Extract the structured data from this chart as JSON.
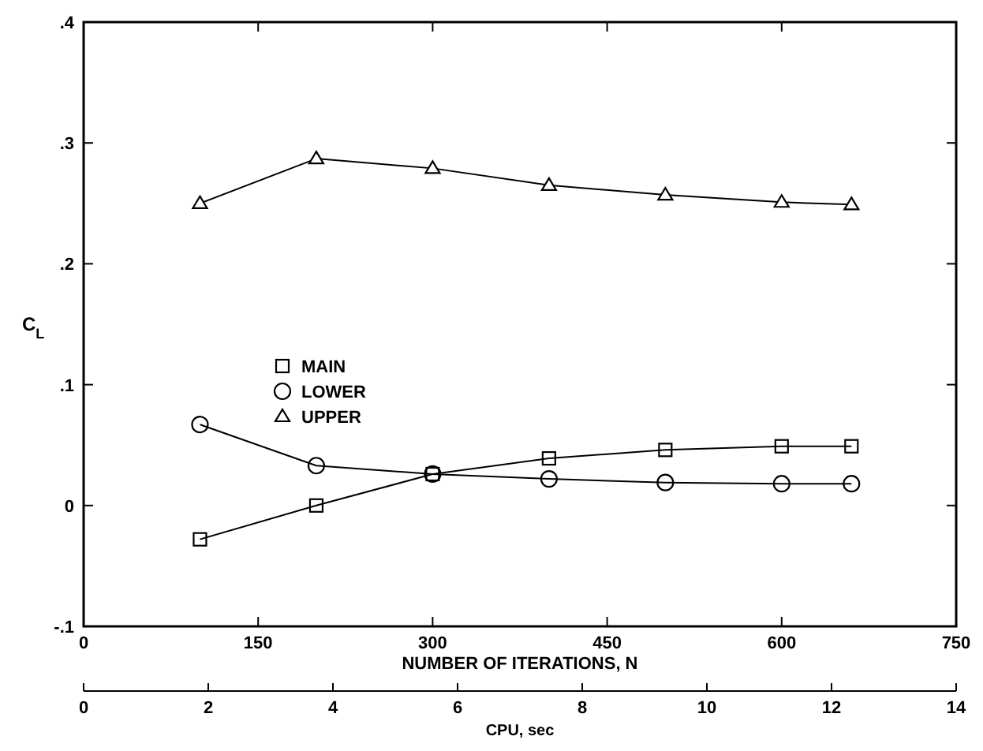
{
  "chart_data": {
    "type": "line",
    "xlabel": "NUMBER OF ITERATIONS, N",
    "ylabel": "C$_{L}$",
    "x2label": "CPU, sec",
    "x": [
      100,
      200,
      300,
      400,
      500,
      600,
      660
    ],
    "series": [
      {
        "name": "MAIN",
        "color": "#000000",
        "marker": "square",
        "values": [
          -0.028,
          0,
          0.026,
          0.039,
          0.046,
          0.049,
          0.049
        ]
      },
      {
        "name": "LOWER",
        "color": "#000000",
        "marker": "circle",
        "values": [
          0.067,
          0.033,
          0.026,
          0.022,
          0.019,
          0.018,
          0.018
        ]
      },
      {
        "name": "UPPER",
        "color": "#000000",
        "marker": "triangle",
        "values": [
          0.25,
          0.287,
          0.279,
          0.265,
          0.257,
          0.251,
          0.249
        ]
      }
    ],
    "xlim": [
      0,
      750
    ],
    "xticks": [
      0,
      150,
      300,
      450,
      600,
      750
    ],
    "x2lim": [
      0,
      14
    ],
    "x2ticks": [
      0,
      2,
      4,
      6,
      8,
      10,
      12,
      14
    ],
    "ylim": [
      -0.1,
      0.4
    ],
    "yticks": [
      {
        "value": -0.1,
        "label": "-.1"
      },
      0,
      {
        "value": 0.1,
        "label": ".1"
      },
      {
        "value": 0.2,
        "label": ".2"
      },
      {
        "value": 0.3,
        "label": ".3"
      },
      {
        "value": 0.4,
        "label": ".4"
      }
    ],
    "grid": false,
    "legend": "left",
    "line_style": "solid"
  }
}
